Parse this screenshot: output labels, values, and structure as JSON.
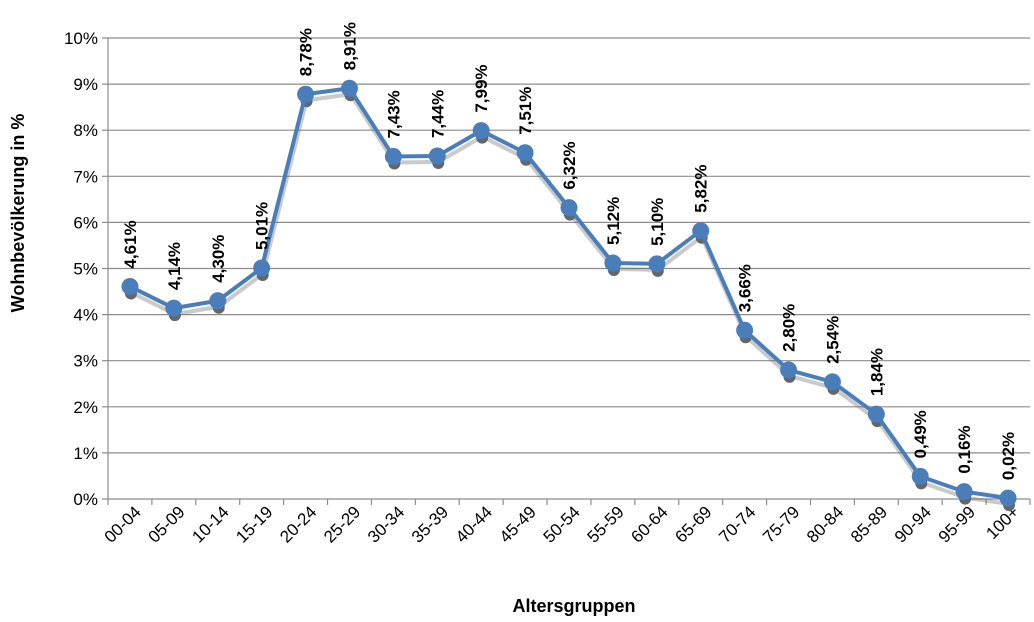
{
  "chart_data": {
    "type": "line",
    "title": "",
    "xlabel": "Altersgruppen",
    "ylabel": "Wohnbevölkerung in %",
    "ylim": [
      0,
      10
    ],
    "yticks": [
      "0%",
      "1%",
      "2%",
      "3%",
      "4%",
      "5%",
      "6%",
      "7%",
      "8%",
      "9%",
      "10%"
    ],
    "grid": "horizontal",
    "legend": "none",
    "categories": [
      "00-04",
      "05-09",
      "10-14",
      "15-19",
      "20-24",
      "25-29",
      "30-34",
      "35-39",
      "40-44",
      "45-49",
      "50-54",
      "55-59",
      "60-64",
      "65-69",
      "70-74",
      "75-79",
      "80-84",
      "85-89",
      "90-94",
      "95-99",
      "100+"
    ],
    "series": [
      {
        "values": [
          4.61,
          4.14,
          4.3,
          5.01,
          8.78,
          8.91,
          7.43,
          7.44,
          7.99,
          7.51,
          6.32,
          5.12,
          5.1,
          5.82,
          3.66,
          2.8,
          2.54,
          1.84,
          0.49,
          0.16,
          0.02
        ],
        "labels": [
          "4,61%",
          "4,14%",
          "4,30%",
          "5,01%",
          "8,78%",
          "8,91%",
          "7,43%",
          "7,44%",
          "7,99%",
          "7,51%",
          "6,32%",
          "5,12%",
          "5,10%",
          "5,82%",
          "3,66%",
          "2,80%",
          "2,54%",
          "1,84%",
          "0,49%",
          "0,16%",
          "0,02%"
        ],
        "color": "#4a7ebb",
        "shadow_color": "#666666"
      }
    ],
    "colors": {
      "grid": "#8c8c8c",
      "axis": "#8c8c8c"
    }
  }
}
